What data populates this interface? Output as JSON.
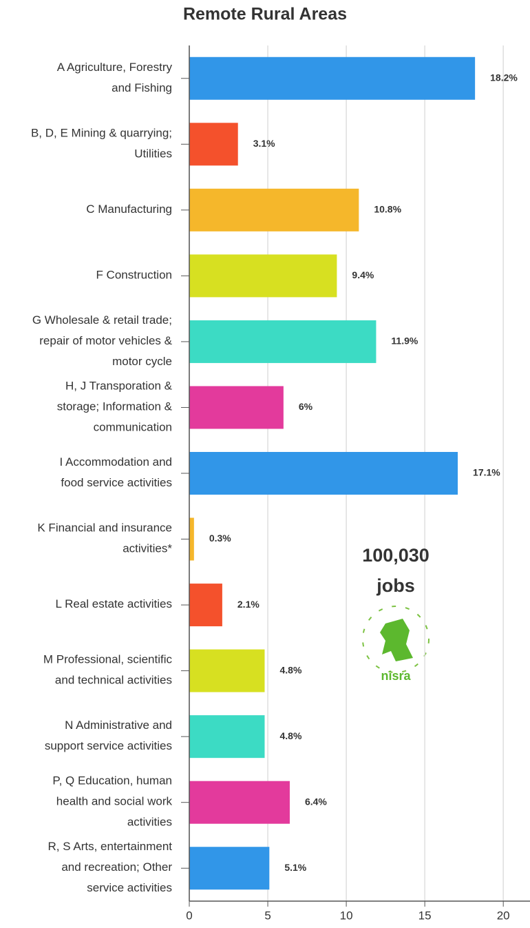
{
  "chart_data": {
    "type": "barh",
    "title": "Remote Rural Areas",
    "categories": [
      "A Agriculture, Forestry\nand Fishing",
      "B, D, E Mining & quarrying;\nUtilities",
      "C Manufacturing",
      "F Construction",
      "G Wholesale & retail trade;\nrepair of motor vehicles &\nmotor cycle",
      "H, J Transporation &\nstorage; Information &\ncommunication",
      "I Accommodation and\nfood service activities",
      "K Financial and insurance\nactivities*",
      "L Real estate activities",
      "M Professional, scientific\nand technical activities",
      "N Administrative and\nsupport service activities",
      "P, Q Education, human\nhealth and social work\nactivities",
      "R, S Arts, entertainment\nand recreation; Other\nservice activities"
    ],
    "values": [
      18.2,
      3.1,
      10.8,
      9.4,
      11.9,
      6,
      17.1,
      0.3,
      2.1,
      4.8,
      4.8,
      6.4,
      5.1
    ],
    "value_labels": [
      "18.2%",
      "3.1%",
      "10.8%",
      "9.4%",
      "11.9%",
      "6%",
      "17.1%",
      "0.3%",
      "2.1%",
      "4.8%",
      "4.8%",
      "6.4%",
      "5.1%"
    ],
    "colors": [
      "#3196e8",
      "#f4512c",
      "#f5b72b",
      "#d7e021",
      "#3cdbc4",
      "#e33a9c",
      "#3196e8",
      "#f5b72b",
      "#f4512c",
      "#d7e021",
      "#3cdbc4",
      "#e33a9c",
      "#3196e8"
    ],
    "xlim": [
      0,
      21
    ],
    "xticks": [
      0,
      5,
      10,
      15,
      20
    ],
    "grid": true,
    "annotation": "100,030\njobs",
    "logo": "nisra"
  }
}
